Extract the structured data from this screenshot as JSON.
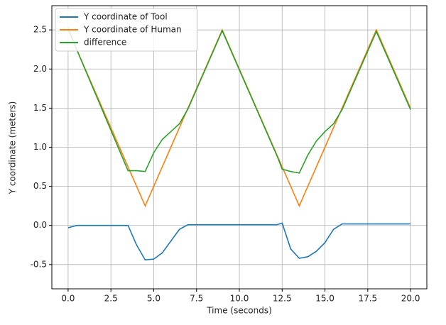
{
  "chart_data": {
    "type": "line",
    "xlabel": "Time (seconds)",
    "ylabel": "Y coordinate (meters)",
    "x": [
      0,
      0.5,
      3.5,
      4,
      4.5,
      5,
      5.5,
      6,
      6.5,
      7,
      9,
      12.2,
      12.5,
      13,
      13.5,
      14,
      14.5,
      15,
      15.5,
      16,
      18,
      20
    ],
    "series": [
      {
        "name": "Y coordinate of Tool",
        "color": "#1f77b4",
        "values": [
          -0.03,
          0.0,
          0.0,
          -0.25,
          -0.44,
          -0.43,
          -0.35,
          -0.2,
          -0.05,
          0.01,
          0.01,
          0.01,
          0.03,
          -0.3,
          -0.42,
          -0.4,
          -0.33,
          -0.22,
          -0.05,
          0.02,
          0.02,
          0.02
        ]
      },
      {
        "name": "Y coordinate of Human",
        "color": "#ff7f0e",
        "values": [
          2.5,
          2.25,
          0.75,
          0.5,
          0.25,
          0.5,
          0.75,
          1.0,
          1.25,
          1.5,
          2.5,
          0.9,
          0.75,
          0.5,
          0.25,
          0.5,
          0.75,
          1.0,
          1.25,
          1.5,
          2.5,
          1.5
        ]
      },
      {
        "name": "difference",
        "color": "#2ca02c",
        "values": [
          2.53,
          2.25,
          0.7,
          0.7,
          0.69,
          0.93,
          1.1,
          1.2,
          1.3,
          1.49,
          2.49,
          0.89,
          0.72,
          0.69,
          0.67,
          0.9,
          1.08,
          1.2,
          1.3,
          1.48,
          2.48,
          1.48
        ]
      }
    ],
    "xlim": [
      -0.95,
      20.95
    ],
    "xticks": [
      {
        "value": 0,
        "label": "0.0"
      },
      2.5,
      {
        "value": 5,
        "label": "5.0"
      },
      7.5,
      {
        "value": 10,
        "label": "10.0"
      },
      12.5,
      {
        "value": 15,
        "label": "15.0"
      },
      17.5,
      {
        "value": 20,
        "label": "20.0"
      }
    ],
    "ylim": [
      -0.81,
      2.81
    ],
    "yticks": [
      -0.5,
      {
        "value": 0,
        "label": "0.0"
      },
      0.5,
      {
        "value": 1,
        "label": "1.0"
      },
      1.5,
      {
        "value": 2,
        "label": "2.0"
      },
      2.5
    ],
    "grid": true,
    "legend": "upper-left"
  }
}
